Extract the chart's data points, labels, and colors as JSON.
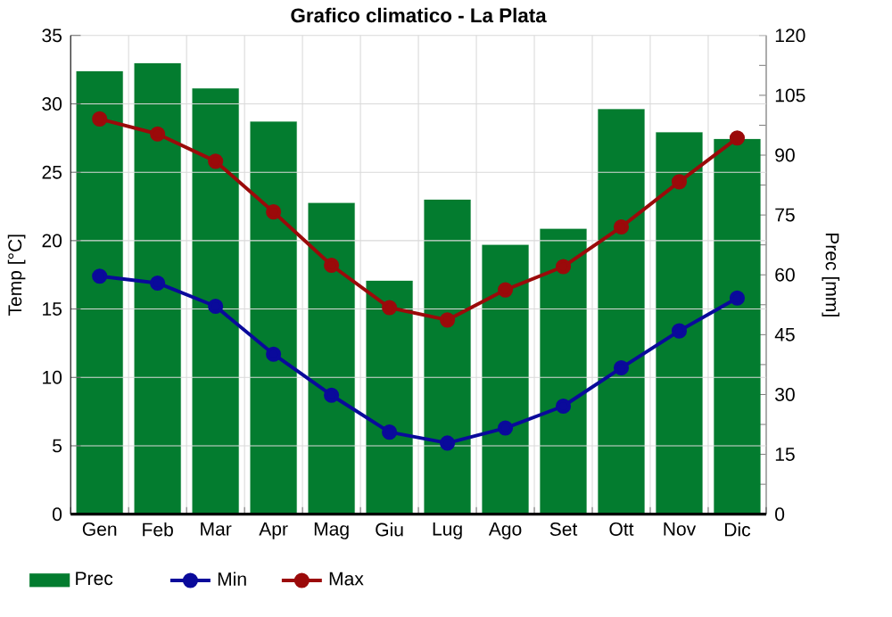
{
  "chart_data": {
    "type": "bar",
    "title": "Grafico climatico - La Plata",
    "ylabel": "Temp [°C]",
    "y2label": "Prec [mm]",
    "categories": [
      "Gen",
      "Feb",
      "Mar",
      "Apr",
      "Mag",
      "Giu",
      "Lug",
      "Ago",
      "Set",
      "Ott",
      "Nov",
      "Dic"
    ],
    "series": [
      {
        "name": "Prec",
        "axis": "y2",
        "color": "#037c2f",
        "values": [
          111,
          113,
          106.7,
          98.4,
          78,
          58.5,
          78.8,
          67.5,
          71.5,
          101.5,
          95.7,
          94
        ]
      },
      {
        "name": "Min",
        "type": "line",
        "color": "#0a0a9b",
        "values": [
          17.4,
          16.9,
          15.2,
          11.7,
          8.7,
          6.0,
          5.2,
          6.3,
          7.9,
          10.7,
          13.4,
          15.8
        ]
      },
      {
        "name": "Max",
        "type": "line",
        "color": "#9b0a0a",
        "values": [
          28.9,
          27.8,
          25.8,
          22.1,
          18.2,
          15.1,
          14.2,
          16.4,
          18.1,
          21.0,
          24.3,
          27.5
        ]
      }
    ],
    "ylim": [
      0,
      35
    ],
    "yticks": [
      0,
      5,
      10,
      15,
      20,
      25,
      30,
      35
    ],
    "y2lim": [
      0,
      120
    ],
    "y2ticks": [
      0,
      {
        "value": 7.5,
        "label": null
      },
      15,
      {
        "value": 22.5,
        "label": null
      },
      30,
      {
        "value": 37.5,
        "label": null
      },
      45,
      {
        "value": 52.5,
        "label": null
      },
      60,
      {
        "value": 67.5,
        "label": null
      },
      75,
      {
        "value": 82.5,
        "label": null
      },
      90,
      {
        "value": 97.5,
        "label": null
      },
      105,
      {
        "value": 112.5,
        "label": null
      },
      120
    ],
    "grid": true,
    "legend": "bottom",
    "marker": "circle",
    "line_style": "solid"
  }
}
